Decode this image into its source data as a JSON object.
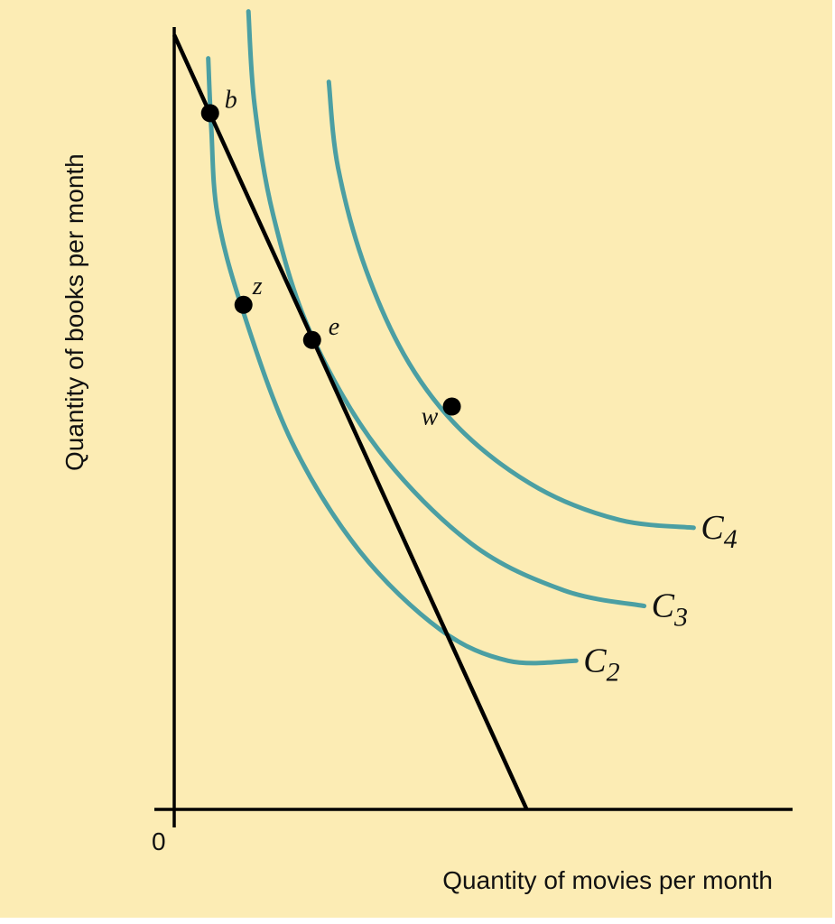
{
  "chart_data": {
    "type": "line",
    "title": "",
    "xlabel": "Quantity of movies per month",
    "ylabel": "Quantity of books per month",
    "origin_label": "0",
    "xlim": [
      0,
      10
    ],
    "ylim": [
      0,
      10
    ],
    "grid": false,
    "budget_line": {
      "x_intercept": 5.7,
      "y_intercept": 9.9
    },
    "series": [
      {
        "name": "C",
        "subscript": "2",
        "color": "#4b9fa3",
        "points": [
          [
            0.55,
            9.6
          ],
          [
            0.6,
            8.7
          ],
          [
            0.7,
            7.6
          ],
          [
            1.1,
            6.4
          ],
          [
            1.9,
            4.7
          ],
          [
            3.0,
            3.3
          ],
          [
            4.3,
            2.3
          ],
          [
            5.4,
            1.9
          ],
          [
            6.5,
            1.9
          ]
        ]
      },
      {
        "name": "C",
        "subscript": "3",
        "color": "#4b9fa3",
        "points": [
          [
            1.2,
            10.2
          ],
          [
            1.3,
            9.0
          ],
          [
            1.6,
            7.6
          ],
          [
            2.2,
            6.1
          ],
          [
            3.3,
            4.6
          ],
          [
            4.8,
            3.4
          ],
          [
            6.3,
            2.8
          ],
          [
            7.6,
            2.6
          ]
        ]
      },
      {
        "name": "C",
        "subscript": "4",
        "color": "#4b9fa3",
        "points": [
          [
            2.5,
            9.3
          ],
          [
            2.65,
            8.2
          ],
          [
            3.1,
            6.9
          ],
          [
            3.8,
            5.7
          ],
          [
            4.7,
            4.8
          ],
          [
            5.9,
            4.1
          ],
          [
            7.2,
            3.7
          ],
          [
            8.4,
            3.6
          ]
        ]
      }
    ],
    "points": [
      {
        "label": "b",
        "x": 0.58,
        "y": 8.9
      },
      {
        "label": "z",
        "x": 1.12,
        "y": 6.45
      },
      {
        "label": "e",
        "x": 2.23,
        "y": 6.0
      },
      {
        "label": "w",
        "x": 4.49,
        "y": 5.15
      }
    ]
  }
}
